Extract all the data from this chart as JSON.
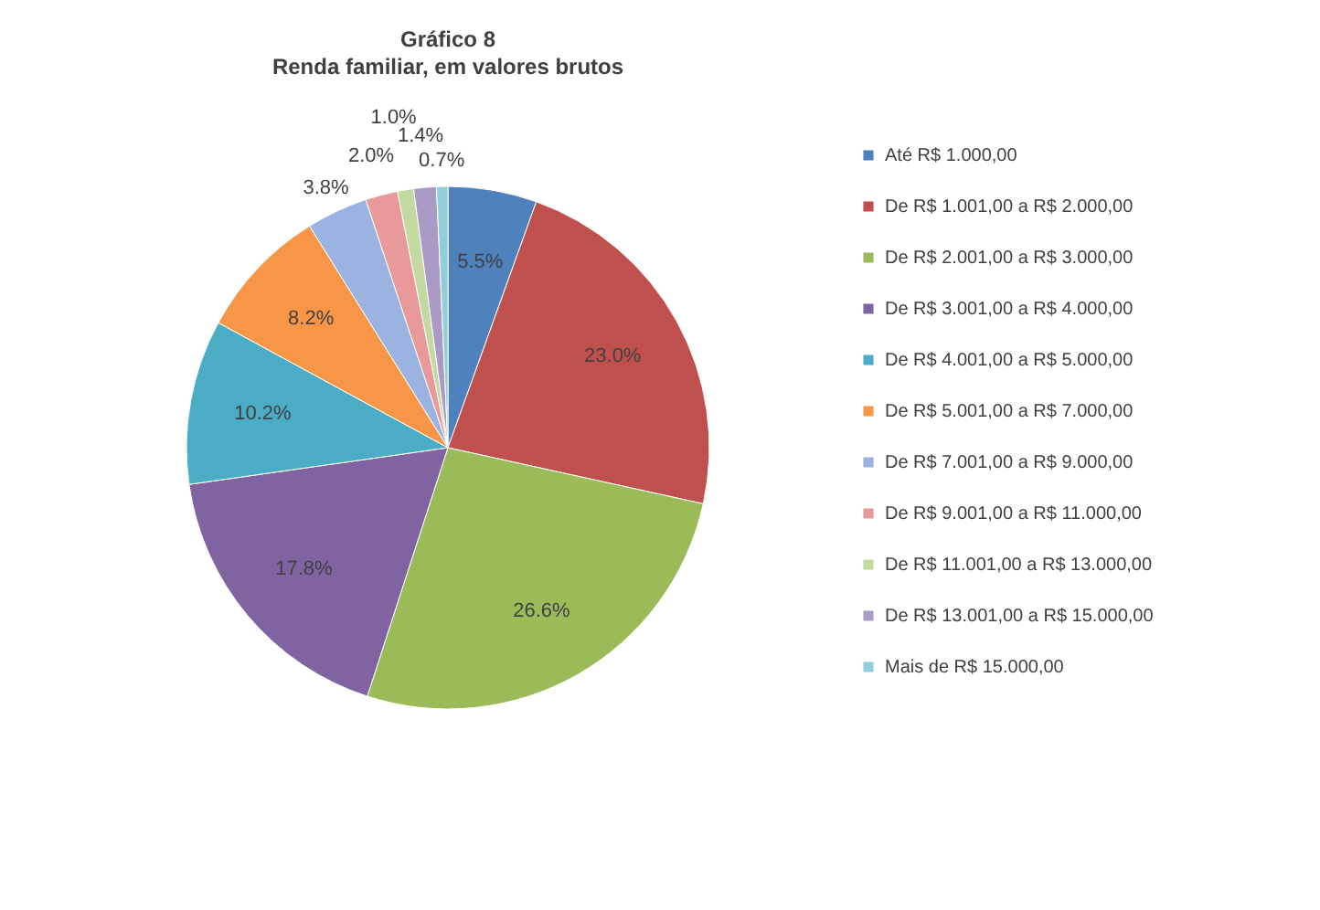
{
  "chart_data": {
    "type": "pie",
    "title": "Gráfico 8",
    "subtitle": "Renda familiar, em valores brutos",
    "categories": [
      "Até R$ 1.000,00",
      "De R$ 1.001,00 a R$ 2.000,00",
      "De R$ 2.001,00 a R$ 3.000,00",
      "De R$ 3.001,00 a R$ 4.000,00",
      "De R$ 4.001,00 a R$ 5.000,00",
      "De R$ 5.001,00 a R$ 7.000,00",
      "De R$ 7.001,00 a R$ 9.000,00",
      "De R$ 9.001,00 a R$ 11.000,00",
      "De R$ 11.001,00 a R$ 13.000,00",
      "De R$ 13.001,00 a R$ 15.000,00",
      "Mais de R$ 15.000,00"
    ],
    "values": [
      5.5,
      23.0,
      26.6,
      17.8,
      10.2,
      8.2,
      3.8,
      2.0,
      1.0,
      1.4,
      0.7
    ],
    "value_labels": [
      "5.5%",
      "23.0%",
      "26.6%",
      "17.8%",
      "10.2%",
      "8.2%",
      "3.8%",
      "2.0%",
      "1.0%",
      "1.4%",
      "0.7%"
    ],
    "colors": [
      "#4f81bd",
      "#c0504d",
      "#9bbb59",
      "#8064a2",
      "#4bacc6",
      "#f79646",
      "#9bb3e0",
      "#e8999a",
      "#c4d9a0",
      "#a99bc6",
      "#92cddc"
    ],
    "legend": "right"
  }
}
